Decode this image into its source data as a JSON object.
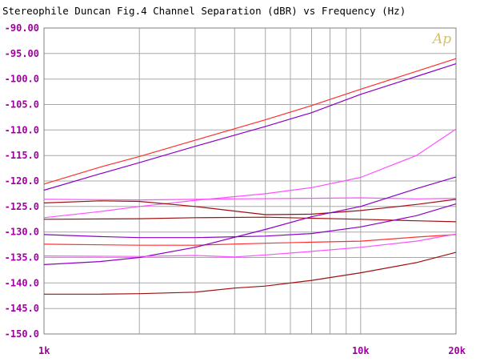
{
  "chart_data": {
    "type": "line",
    "title": "Stereophile  Duncan Fig.4  Channel Separation (dBR) vs Frequency (Hz)",
    "xlabel": "",
    "ylabel": "",
    "x_scale": "log",
    "xlim": [
      1000,
      20000
    ],
    "ylim": [
      -150,
      -90
    ],
    "grid": true,
    "logo_text": "Ap",
    "x_ticks": [
      {
        "value": 1000,
        "label": "1k"
      },
      {
        "value": 10000,
        "label": "10k"
      },
      {
        "value": 20000,
        "label": "20k"
      }
    ],
    "x_gridlines": [
      2000,
      3000,
      4000,
      5000,
      6000,
      7000,
      8000,
      9000,
      10000
    ],
    "y_ticks": [
      {
        "value": -90,
        "label": "-90.00"
      },
      {
        "value": -95,
        "label": "-95.00"
      },
      {
        "value": -100,
        "label": "-100.0"
      },
      {
        "value": -105,
        "label": "-105.0"
      },
      {
        "value": -110,
        "label": "-110.0"
      },
      {
        "value": -115,
        "label": "-115.0"
      },
      {
        "value": -120,
        "label": "-120.0"
      },
      {
        "value": -125,
        "label": "-125.0"
      },
      {
        "value": -130,
        "label": "-130.0"
      },
      {
        "value": -135,
        "label": "-135.0"
      },
      {
        "value": -140,
        "label": "-140.0"
      },
      {
        "value": -145,
        "label": "-145.0"
      },
      {
        "value": -150,
        "label": "-150.0"
      }
    ],
    "series": [
      {
        "color": "#ff3030",
        "points": [
          [
            1000,
            -120.6
          ],
          [
            1500,
            -117.3
          ],
          [
            2000,
            -115.2
          ],
          [
            3000,
            -112.0
          ],
          [
            5000,
            -108.0
          ],
          [
            7000,
            -105.2
          ],
          [
            10000,
            -102.0
          ],
          [
            15000,
            -98.5
          ],
          [
            20000,
            -96.0
          ]
        ]
      },
      {
        "color": "#8c00c8",
        "points": [
          [
            1000,
            -121.8
          ],
          [
            1500,
            -118.6
          ],
          [
            2000,
            -116.4
          ],
          [
            3000,
            -113.2
          ],
          [
            5000,
            -109.3
          ],
          [
            7000,
            -106.6
          ],
          [
            10000,
            -103.0
          ],
          [
            15000,
            -99.5
          ],
          [
            20000,
            -97.0
          ]
        ]
      },
      {
        "color": "#ff50ff",
        "points": [
          [
            1000,
            -127.2
          ],
          [
            1500,
            -126.0
          ],
          [
            2000,
            -125.0
          ],
          [
            3000,
            -123.8
          ],
          [
            5000,
            -122.5
          ],
          [
            7000,
            -121.3
          ],
          [
            10000,
            -119.3
          ],
          [
            15000,
            -115.0
          ],
          [
            20000,
            -109.8
          ]
        ]
      },
      {
        "color": "#ff50ff",
        "points": [
          [
            1000,
            -123.6
          ],
          [
            2000,
            -123.7
          ],
          [
            4000,
            -123.5
          ],
          [
            7000,
            -123.4
          ],
          [
            10000,
            -123.3
          ],
          [
            15000,
            -123.5
          ],
          [
            20000,
            -123.4
          ]
        ]
      },
      {
        "color": "#a01010",
        "points": [
          [
            1000,
            -124.3
          ],
          [
            1500,
            -123.9
          ],
          [
            2000,
            -124.0
          ],
          [
            3000,
            -125.0
          ],
          [
            5000,
            -126.6
          ],
          [
            7000,
            -126.5
          ],
          [
            10000,
            -125.8
          ],
          [
            15000,
            -124.6
          ],
          [
            20000,
            -123.6
          ]
        ]
      },
      {
        "color": "#a01010",
        "points": [
          [
            1000,
            -127.5
          ],
          [
            2000,
            -127.4
          ],
          [
            3000,
            -127.2
          ],
          [
            5000,
            -127.1
          ],
          [
            7000,
            -127.3
          ],
          [
            10000,
            -127.5
          ],
          [
            15000,
            -127.8
          ],
          [
            20000,
            -128.0
          ]
        ]
      },
      {
        "color": "#8c00c8",
        "points": [
          [
            1000,
            -130.5
          ],
          [
            1500,
            -130.9
          ],
          [
            2000,
            -131.1
          ],
          [
            3000,
            -131.1
          ],
          [
            5000,
            -130.8
          ],
          [
            7000,
            -130.3
          ],
          [
            10000,
            -129.0
          ],
          [
            15000,
            -126.8
          ],
          [
            20000,
            -124.5
          ]
        ]
      },
      {
        "color": "#ff3030",
        "points": [
          [
            1000,
            -132.4
          ],
          [
            2000,
            -132.6
          ],
          [
            3000,
            -132.6
          ],
          [
            5000,
            -132.2
          ],
          [
            7000,
            -132.0
          ],
          [
            10000,
            -131.8
          ],
          [
            15000,
            -131.0
          ],
          [
            20000,
            -130.5
          ]
        ]
      },
      {
        "color": "#8c00c8",
        "points": [
          [
            1000,
            -136.4
          ],
          [
            1500,
            -135.8
          ],
          [
            2000,
            -135.0
          ],
          [
            3000,
            -133.0
          ],
          [
            5000,
            -129.5
          ],
          [
            7000,
            -127.0
          ],
          [
            10000,
            -125.0
          ],
          [
            15000,
            -121.5
          ],
          [
            20000,
            -119.2
          ]
        ]
      },
      {
        "color": "#ff50ff",
        "points": [
          [
            1000,
            -134.7
          ],
          [
            2000,
            -134.8
          ],
          [
            3000,
            -134.6
          ],
          [
            4000,
            -134.9
          ],
          [
            5000,
            -134.5
          ],
          [
            7000,
            -133.8
          ],
          [
            10000,
            -133.0
          ],
          [
            15000,
            -131.8
          ],
          [
            20000,
            -130.4
          ]
        ]
      },
      {
        "color": "#a01010",
        "points": [
          [
            1000,
            -142.2
          ],
          [
            1500,
            -142.2
          ],
          [
            2000,
            -142.1
          ],
          [
            3000,
            -141.8
          ],
          [
            4000,
            -141.0
          ],
          [
            5000,
            -140.6
          ],
          [
            7000,
            -139.5
          ],
          [
            10000,
            -138.0
          ],
          [
            15000,
            -136.0
          ],
          [
            20000,
            -134.0
          ]
        ]
      }
    ]
  }
}
